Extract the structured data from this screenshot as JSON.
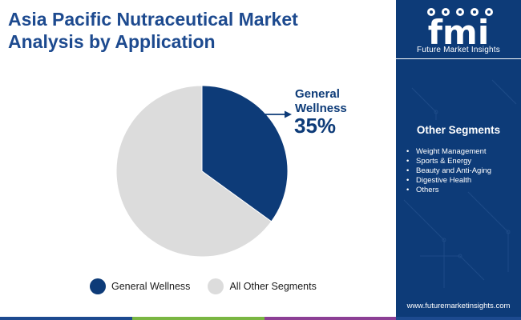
{
  "header": {
    "title_line1": "Asia Pacific Nutraceutical Market",
    "title_line2": "Analysis by Application"
  },
  "chart_data": {
    "type": "pie",
    "slices": [
      {
        "label": "General Wellness",
        "value": 35,
        "color": "#0d3b78"
      },
      {
        "label": "All Other Segments",
        "value": 65,
        "color": "#dcdcdc"
      }
    ],
    "start_angle_deg": 0,
    "direction": "clockwise",
    "legend_position": "bottom",
    "callout": {
      "label_line1": "General",
      "label_line2": "Wellness",
      "value_text": "35%"
    }
  },
  "sidebar": {
    "logo_text": "fmi",
    "logo_subtitle": "Future Market Insights",
    "segments_title": "Other Segments",
    "segments": [
      "Weight Management",
      "Sports & Energy",
      "Beauty and Anti-Aging",
      "Digestive Health",
      "Others"
    ],
    "website": "www.futuremarketinsights.com"
  },
  "colors": {
    "brand_navy": "#0d3b78",
    "title_blue": "#1d4a8f",
    "bottom_bar": [
      "#1d4a8f",
      "#7ab642",
      "#8c3f95",
      "#1d4a8f"
    ]
  },
  "icons": [
    "leaf-icon",
    "pill-icon",
    "fish-icon",
    "runner-icon",
    "apple-icon"
  ]
}
